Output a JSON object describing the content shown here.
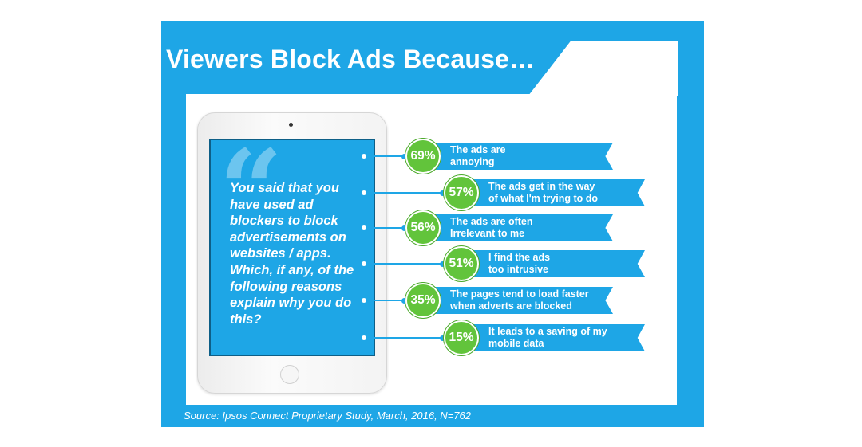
{
  "title": "Viewers Block Ads Because…",
  "question": "You said that you have used ad blockers to block advertisements on websites / apps. Which, if any, of the following reasons explain why you do this?",
  "quote_glyph": "“",
  "source": "Source: Ipsos Connect Proprietary Study, March, 2016, N=762",
  "colors": {
    "frame": "#1ea6e6",
    "badge": "#62c43b",
    "text_on_blue": "#ffffff"
  },
  "chart_data": {
    "type": "bar",
    "title": "Viewers Block Ads Because…",
    "categories": [
      "The ads are annoying",
      "The ads get in the way of what I'm trying to do",
      "The ads are often Irrelevant to me",
      "I find the ads too intrusive",
      "The pages tend to load faster when adverts are blocked",
      "It leads to a saving of my mobile data"
    ],
    "values": [
      69,
      57,
      56,
      51,
      35,
      15
    ],
    "value_labels": [
      "69%",
      "57%",
      "56%",
      "51%",
      "35%",
      "15%"
    ],
    "label_lines": [
      "The ads are\nannoying",
      "The ads get in the way\nof what I'm trying to do",
      "The ads are often\nIrrelevant to me",
      "I find the ads\ntoo intrusive",
      "The pages tend to load faster\nwhen adverts are blocked",
      "It leads to a saving of my\nmobile data"
    ],
    "unit": "%",
    "ylim": [
      0,
      100
    ]
  }
}
